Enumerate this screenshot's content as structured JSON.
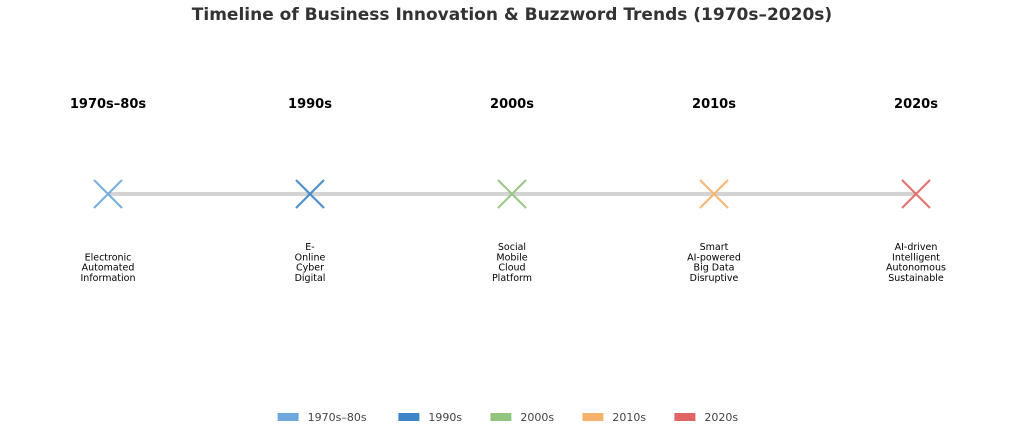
{
  "chart_data": {
    "type": "timeline",
    "title": "Timeline of Business Innovation & Buzzword Trends (1970s–2020s)",
    "periods": [
      {
        "label": "1970s–80s",
        "color": "#6fa8dc",
        "terms": [
          "Electronic",
          "Automated",
          "Information"
        ]
      },
      {
        "label": "1990s",
        "color": "#3d85c6",
        "terms": [
          "E-",
          "Online",
          "Cyber",
          "Digital"
        ]
      },
      {
        "label": "2000s",
        "color": "#93c47d",
        "terms": [
          "Social",
          "Mobile",
          "Cloud",
          "Platform"
        ]
      },
      {
        "label": "2010s",
        "color": "#f6b26b",
        "terms": [
          "Smart",
          "AI-powered",
          "Big Data",
          "Disruptive"
        ]
      },
      {
        "label": "2020s",
        "color": "#e06666",
        "terms": [
          "AI-driven",
          "Intelligent",
          "Autonomous",
          "Sustainable"
        ]
      }
    ],
    "legend": {
      "position": "bottom-center"
    },
    "line_color": "#d3d3d3"
  }
}
